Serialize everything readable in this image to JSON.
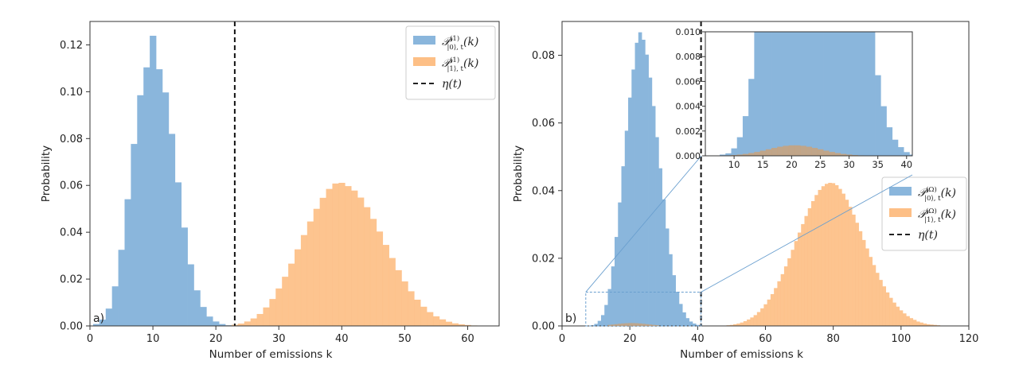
{
  "chart_data": [
    {
      "type": "bar",
      "panel_label": "a)",
      "xlabel": "Number of emissions k",
      "ylabel": "Probability",
      "xlim": [
        0,
        65
      ],
      "ylim": [
        0,
        0.13
      ],
      "xticks": [
        0,
        10,
        20,
        30,
        40,
        50,
        60
      ],
      "yticks": [
        0.0,
        0.02,
        0.04,
        0.06,
        0.08,
        0.1,
        0.12
      ],
      "ytick_labels": [
        "0.00",
        "0.02",
        "0.04",
        "0.06",
        "0.08",
        "0.10",
        "0.12"
      ],
      "legend_position": "top-right",
      "threshold": {
        "name": "η(t)",
        "x": 23
      },
      "series": [
        {
          "name": "P|0⟩,t(1)(k)",
          "name_main": "𝒫",
          "name_sup": "(1)",
          "name_sub": "|0⟩, t",
          "name_arg": "(k)",
          "color": "#8ab6dc",
          "x_start": 0,
          "values": [
            0.0001,
            0.0008,
            0.0027,
            0.0074,
            0.0169,
            0.0325,
            0.0541,
            0.0777,
            0.0985,
            0.1104,
            0.1239,
            0.1096,
            0.0997,
            0.082,
            0.0613,
            0.042,
            0.0263,
            0.0152,
            0.0081,
            0.004,
            0.0019,
            0.0008,
            0.0003,
            0.0001
          ]
        },
        {
          "name": "P|1⟩,t(1)(k)",
          "name_main": "𝒫",
          "name_sup": "(1)",
          "name_sub": "|1⟩, t",
          "name_arg": "(k)",
          "color": "#fdbf86",
          "x_start": 22,
          "values": [
            0.0002,
            0.0005,
            0.001,
            0.0019,
            0.0032,
            0.0051,
            0.0079,
            0.0115,
            0.016,
            0.021,
            0.0266,
            0.0327,
            0.0388,
            0.0446,
            0.05,
            0.0547,
            0.0585,
            0.0608,
            0.0611,
            0.0597,
            0.0578,
            0.0548,
            0.0507,
            0.0457,
            0.0403,
            0.0346,
            0.029,
            0.0238,
            0.019,
            0.0148,
            0.0112,
            0.0082,
            0.0059,
            0.0041,
            0.0028,
            0.0018,
            0.0011,
            0.0007,
            0.0004,
            0.0002,
            0.0001,
            0.0001
          ]
        }
      ]
    },
    {
      "type": "bar",
      "panel_label": "b)",
      "xlabel": "Number of emissions k",
      "ylabel": "Probability",
      "xlim": [
        0,
        120
      ],
      "ylim": [
        0,
        0.09
      ],
      "xticks": [
        0,
        20,
        40,
        60,
        80,
        100,
        120
      ],
      "yticks": [
        0.0,
        0.02,
        0.04,
        0.06,
        0.08
      ],
      "ytick_labels": [
        "0.00",
        "0.02",
        "0.04",
        "0.06",
        "0.08"
      ],
      "legend_position": "center-right",
      "threshold": {
        "name": "η(t)",
        "x": 41
      },
      "series": [
        {
          "name": "P|0⟩,t(Ω)(k)",
          "name_main": "𝒫",
          "name_sup": "(Ω)",
          "name_sub": "|0⟩, t",
          "name_arg": "(k)",
          "color": "#8ab6dc",
          "x_start": 8,
          "values": [
            0.0001,
            0.0002,
            0.0006,
            0.0015,
            0.0032,
            0.0062,
            0.0109,
            0.0176,
            0.0263,
            0.0365,
            0.0472,
            0.0577,
            0.0675,
            0.0758,
            0.0837,
            0.0868,
            0.0846,
            0.0802,
            0.0734,
            0.065,
            0.0558,
            0.0466,
            0.0374,
            0.0288,
            0.0212,
            0.015,
            0.0101,
            0.0065,
            0.004,
            0.0023,
            0.0013,
            0.0007,
            0.0003,
            0.0001
          ]
        },
        {
          "name": "P|1⟩,t(Ω)(k)",
          "name_main": "𝒫",
          "name_sup": "(Ω)",
          "name_sub": "|1⟩, t",
          "name_arg": "(k)",
          "color": "#fdbf86",
          "x_start": 48,
          "values": [
            0.0001,
            0.0002,
            0.0003,
            0.0005,
            0.0007,
            0.001,
            0.0014,
            0.0019,
            0.0025,
            0.0032,
            0.0041,
            0.0052,
            0.0064,
            0.0078,
            0.0094,
            0.0112,
            0.0132,
            0.0153,
            0.0176,
            0.02,
            0.0225,
            0.0251,
            0.0276,
            0.0301,
            0.0325,
            0.0348,
            0.0369,
            0.0387,
            0.0402,
            0.0413,
            0.042,
            0.0423,
            0.0422,
            0.0416,
            0.0405,
            0.0391,
            0.0373,
            0.0352,
            0.0329,
            0.0305,
            0.028,
            0.0254,
            0.0229,
            0.0204,
            0.018,
            0.0157,
            0.0136,
            0.0117,
            0.0099,
            0.0083,
            0.0069,
            0.0057,
            0.0046,
            0.0037,
            0.0029,
            0.0023,
            0.0018,
            0.0013,
            0.001,
            0.0007,
            0.0005,
            0.0004,
            0.0003,
            0.0002,
            0.0001
          ]
        }
      ],
      "inset": {
        "xlim": [
          5,
          41
        ],
        "ylim": [
          0,
          0.01
        ],
        "xticks": [
          10,
          15,
          20,
          25,
          30,
          35,
          40
        ],
        "yticks": [
          0.0,
          0.002,
          0.004,
          0.006,
          0.008,
          0.01
        ],
        "ytick_labels": [
          "0.000",
          "0.002",
          "0.004",
          "0.006",
          "0.008",
          "0.010"
        ],
        "source_region": {
          "x": [
            7,
            41
          ],
          "y": [
            0,
            0.01
          ]
        }
      }
    }
  ]
}
